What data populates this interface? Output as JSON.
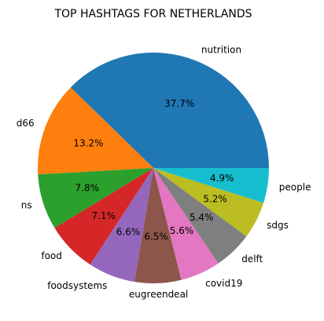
{
  "chart_data": {
    "type": "pie",
    "title": "TOP HASHTAGS FOR NETHERLANDS",
    "start_angle_deg": 0,
    "direction": "counterclockwise",
    "slices": [
      {
        "label": "nutrition",
        "percent_label": "37.7%",
        "value": 37.7,
        "color": "#1f77b4"
      },
      {
        "label": "d66",
        "percent_label": "13.2%",
        "value": 13.2,
        "color": "#ff7f0e"
      },
      {
        "label": "ns",
        "percent_label": "7.8%",
        "value": 7.8,
        "color": "#2ca02c"
      },
      {
        "label": "food",
        "percent_label": "7.1%",
        "value": 7.1,
        "color": "#d62728"
      },
      {
        "label": "foodsystems",
        "percent_label": "6.6%",
        "value": 6.6,
        "color": "#9467bd"
      },
      {
        "label": "eugreendeal",
        "percent_label": "6.5%",
        "value": 6.5,
        "color": "#8c564b"
      },
      {
        "label": "covid19",
        "percent_label": "5.6%",
        "value": 5.6,
        "color": "#e377c2"
      },
      {
        "label": "delft",
        "percent_label": "5.4%",
        "value": 5.4,
        "color": "#7f7f7f"
      },
      {
        "label": "sdgs",
        "percent_label": "5.2%",
        "value": 5.2,
        "color": "#bcbd22"
      },
      {
        "label": "people",
        "percent_label": "4.9%",
        "value": 4.9,
        "color": "#17becf"
      }
    ]
  }
}
